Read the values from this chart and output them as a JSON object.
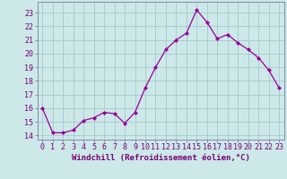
{
  "x": [
    0,
    1,
    2,
    3,
    4,
    5,
    6,
    7,
    8,
    9,
    10,
    11,
    12,
    13,
    14,
    15,
    16,
    17,
    18,
    19,
    20,
    21,
    22,
    23
  ],
  "y": [
    16.0,
    14.2,
    14.2,
    14.4,
    15.1,
    15.3,
    15.7,
    15.6,
    14.9,
    15.7,
    17.5,
    19.0,
    20.3,
    21.0,
    21.5,
    23.2,
    22.3,
    21.1,
    21.4,
    20.8,
    20.3,
    19.7,
    18.8,
    17.5
  ],
  "line_color": "#990099",
  "marker": "D",
  "marker_size": 2,
  "background_color": "#cce8e8",
  "grid_color": "#aacece",
  "xlabel": "Windchill (Refroidissement éolien,°C)",
  "xlabel_fontsize": 6.5,
  "xtick_labels": [
    "0",
    "1",
    "2",
    "3",
    "4",
    "5",
    "6",
    "7",
    "8",
    "9",
    "10",
    "11",
    "12",
    "13",
    "14",
    "15",
    "16",
    "17",
    "18",
    "19",
    "20",
    "21",
    "22",
    "23"
  ],
  "ytick_vals": [
    14,
    15,
    16,
    17,
    18,
    19,
    20,
    21,
    22,
    23
  ],
  "ytick_labels": [
    "14",
    "15",
    "16",
    "17",
    "18",
    "19",
    "20",
    "21",
    "22",
    "23"
  ],
  "ylim": [
    13.7,
    23.8
  ],
  "xlim": [
    -0.5,
    23.5
  ],
  "tick_fontsize": 6.0,
  "label_color": "#770077",
  "spine_color": "#8888aa"
}
